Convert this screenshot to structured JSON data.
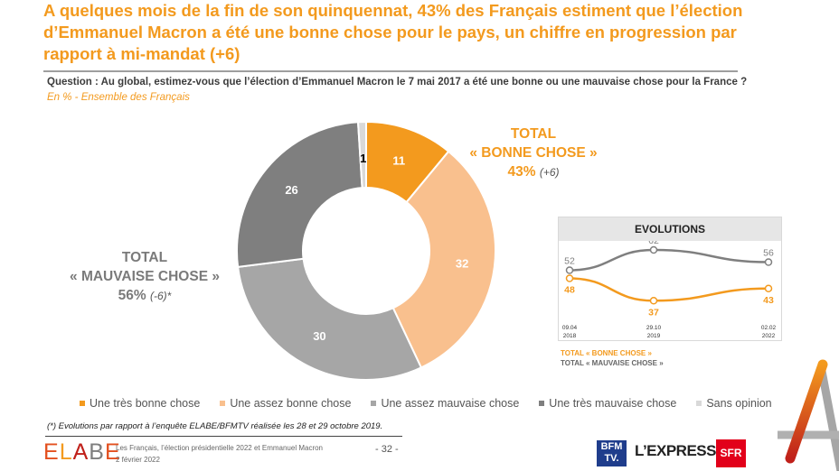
{
  "header": {
    "title": "A quelques mois de la fin de son quinquennat, 43% des Français estiment que l’élection d’Emmanuel Macron a été une bonne chose pour le pays, un chiffre en progression par rapport à mi-mandat (+6)",
    "question": "Question : Au global, estimez-vous que l’élection d’Emmanuel Macron le 7 mai 2017 a été une bonne ou une mauvaise chose pour la France ?",
    "base": "En % - Ensemble des Français"
  },
  "totals": {
    "good_label_1": "TOTAL",
    "good_label_2": "« BONNE CHOSE »",
    "good_value": "43%",
    "good_delta": "(+6)",
    "bad_label_1": "TOTAL",
    "bad_label_2": "« MAUVAISE CHOSE »",
    "bad_value": "56%",
    "bad_delta": "(-6)*"
  },
  "chart_data": [
    {
      "type": "pie",
      "subtype": "donut",
      "title": "",
      "categories": [
        "Une très bonne chose",
        "Une assez bonne chose",
        "Une assez mauvaise chose",
        "Une très mauvaise chose",
        "Sans opinion"
      ],
      "values": [
        11,
        32,
        30,
        26,
        1
      ],
      "colors": [
        "#F39A1E",
        "#F9C08E",
        "#A6A6A6",
        "#7F7F7F",
        "#D9D9D9"
      ],
      "label_colors": [
        "#ffffff",
        "#ffffff",
        "#ffffff",
        "#ffffff",
        "#000000"
      ],
      "start": "top",
      "direction": "clockwise",
      "legend": "bottom"
    },
    {
      "type": "line",
      "title": "EVOLUTIONS",
      "x": [
        "09.04 2018",
        "29.10 2019",
        "02.02 2022"
      ],
      "x_top": [
        "09.04",
        "29.10",
        "02.02"
      ],
      "x_bottom": [
        "2018",
        "2019",
        "2022"
      ],
      "series": [
        {
          "name": "TOTAL « MAUVAISE CHOSE »",
          "values": [
            52,
            62,
            56
          ],
          "color": "#7F7F7F"
        },
        {
          "name": "TOTAL « BONNE CHOSE »",
          "values": [
            48,
            37,
            43
          ],
          "color": "#F39A1E"
        }
      ],
      "ylim": [
        30,
        70
      ],
      "legend": "bottom-left"
    }
  ],
  "evolutions_legend": {
    "good": "TOTAL « BONNE CHOSE »",
    "bad": "TOTAL « MAUVAISE CHOSE »"
  },
  "footer": {
    "footnote": "(*) Evolutions par rapport à l’enquête ELABE/BFMTV réalisée les 28 et 29 octobre 2019.",
    "logo": "ELABE",
    "line1": "Les Français, l’élection présidentielle 2022 et Emmanuel Macron",
    "line2": "2 février 2022",
    "page": "- 32 -",
    "partner_bfm_1": "BFM",
    "partner_bfm_2": "TV.",
    "partner_express": "L’EXPRESS",
    "partner_sfr": "SFR"
  }
}
